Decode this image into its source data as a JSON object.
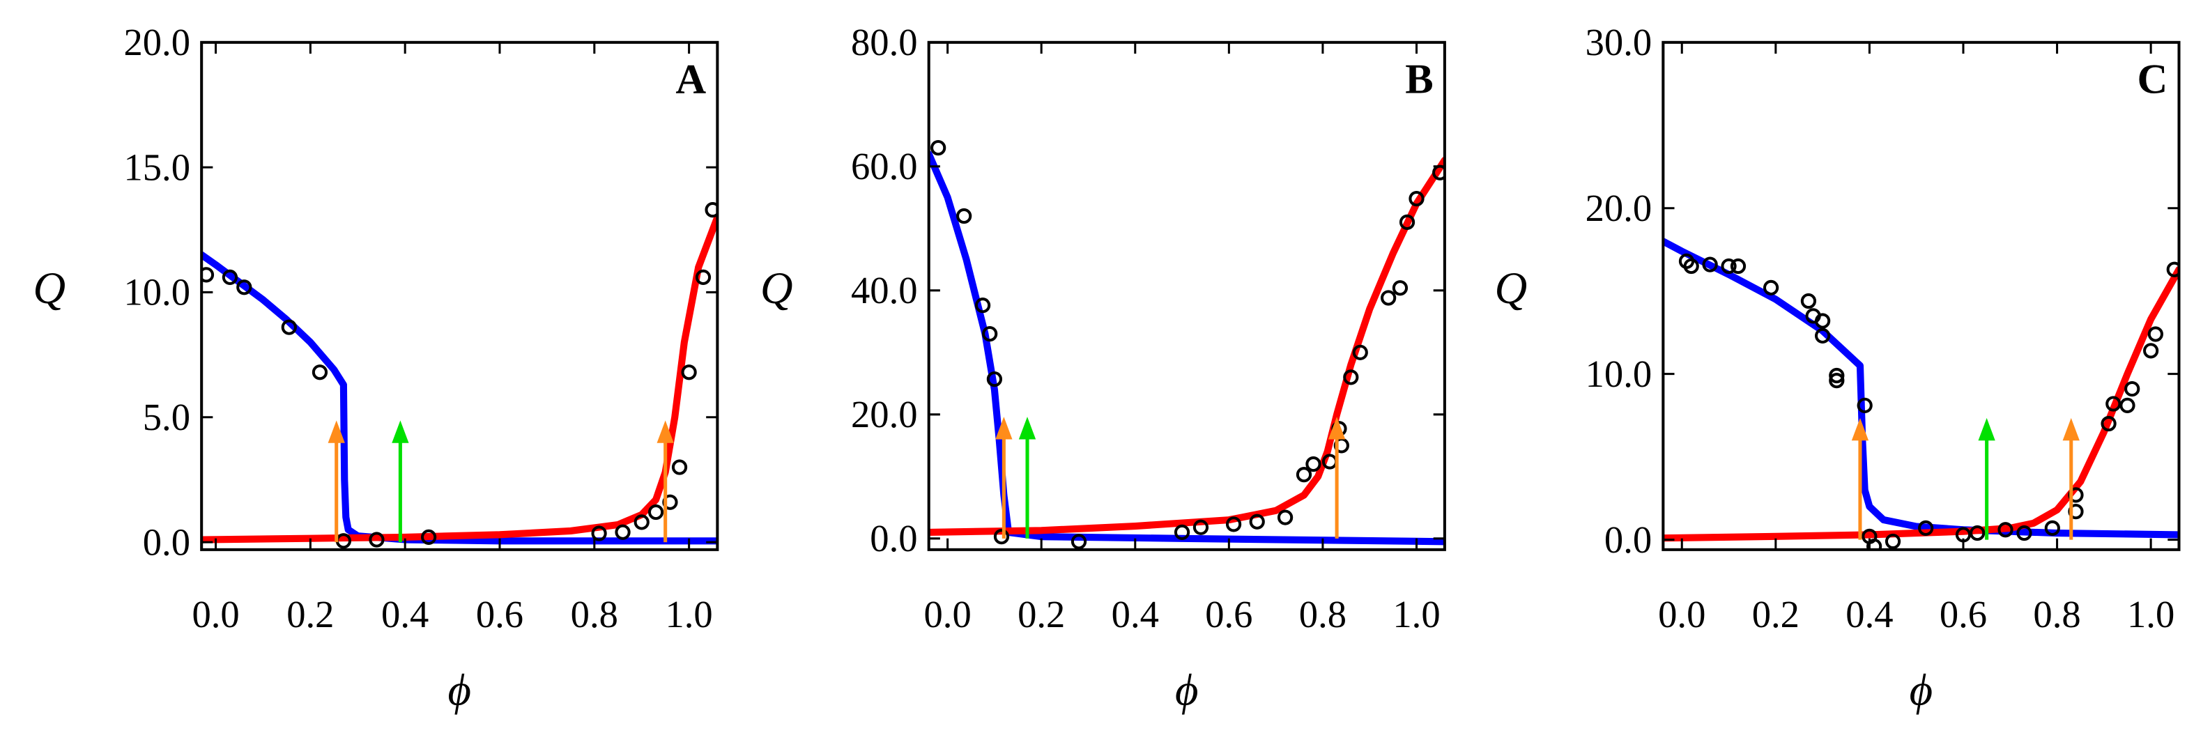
{
  "chart_data": [
    {
      "type": "line",
      "label": "A",
      "x_label": "ϕ",
      "y_label": "Q",
      "xlim": [
        -0.03,
        1.06
      ],
      "ylim": [
        -0.3,
        20
      ],
      "xticks": [
        {
          "value": 0,
          "label": "0.0"
        },
        {
          "value": 0.2,
          "label": "0.2"
        },
        {
          "value": 0.4,
          "label": "0.4"
        },
        {
          "value": 0.6,
          "label": "0.6"
        },
        {
          "value": 0.8,
          "label": "0.8"
        },
        {
          "value": 1,
          "label": "1.0"
        }
      ],
      "yticks": [
        {
          "value": 0,
          "label": "0.0"
        },
        {
          "value": 5,
          "label": "5.0"
        },
        {
          "value": 10,
          "label": "10.0"
        },
        {
          "value": 15,
          "label": "15.0"
        },
        {
          "value": 20,
          "label": "20.0"
        }
      ],
      "series": [
        {
          "kind": "line",
          "color": "#0000ff",
          "x": [
            -0.03,
            0.0,
            0.05,
            0.1,
            0.15,
            0.2,
            0.25,
            0.27,
            0.272,
            0.275,
            0.28,
            0.3,
            0.4,
            0.6,
            0.8,
            1.0,
            1.06
          ],
          "values": [
            11.5,
            11.1,
            10.4,
            9.7,
            8.9,
            8.0,
            6.9,
            6.3,
            2.5,
            1.0,
            0.5,
            0.25,
            0.1,
            0.05,
            0.05,
            0.05,
            0.05
          ]
        },
        {
          "kind": "line",
          "color": "#ff0000",
          "x": [
            -0.03,
            0.2,
            0.4,
            0.6,
            0.75,
            0.85,
            0.9,
            0.93,
            0.95,
            0.97,
            0.99,
            1.02,
            1.06
          ],
          "values": [
            0.1,
            0.15,
            0.2,
            0.3,
            0.45,
            0.7,
            1.1,
            1.7,
            2.8,
            5,
            8,
            11,
            13
          ]
        },
        {
          "kind": "scatter",
          "color": "#000000",
          "x": [
            -0.02,
            0.03,
            0.06,
            0.155,
            0.22,
            0.27,
            0.34,
            0.45,
            0.81,
            0.86,
            0.9,
            0.93,
            0.96,
            0.98,
            1.0,
            1.03,
            1.05
          ],
          "values": [
            10.7,
            10.6,
            10.2,
            8.6,
            6.8,
            0.05,
            0.1,
            0.2,
            0.35,
            0.4,
            0.8,
            1.2,
            1.6,
            3.0,
            6.8,
            10.6,
            13.3
          ]
        }
      ],
      "arrows": [
        {
          "x": 0.255,
          "color": "#ff8c1a"
        },
        {
          "x": 0.39,
          "color": "#00e000"
        },
        {
          "x": 0.95,
          "color": "#ff8c1a"
        }
      ]
    },
    {
      "type": "line",
      "label": "B",
      "x_label": "ϕ",
      "y_label": "Q",
      "xlim": [
        -0.04,
        1.06
      ],
      "ylim": [
        -1.8,
        80
      ],
      "xticks": [
        {
          "value": 0,
          "label": "0.0"
        },
        {
          "value": 0.2,
          "label": "0.2"
        },
        {
          "value": 0.4,
          "label": "0.4"
        },
        {
          "value": 0.6,
          "label": "0.6"
        },
        {
          "value": 0.8,
          "label": "0.8"
        },
        {
          "value": 1,
          "label": "1.0"
        }
      ],
      "yticks": [
        {
          "value": 0,
          "label": "0.0"
        },
        {
          "value": 20,
          "label": "20.0"
        },
        {
          "value": 40,
          "label": "40.0"
        },
        {
          "value": 60,
          "label": "60.0"
        },
        {
          "value": 80,
          "label": "80.0"
        }
      ],
      "series": [
        {
          "kind": "line",
          "color": "#0000ff",
          "x": [
            -0.04,
            0.0,
            0.04,
            0.08,
            0.1,
            0.11,
            0.12,
            0.13,
            0.2,
            0.5,
            1.06
          ],
          "values": [
            62,
            55,
            45,
            33,
            24,
            16,
            7,
            1,
            0.3,
            0,
            -0.5
          ]
        },
        {
          "kind": "line",
          "color": "#ff0000",
          "x": [
            -0.04,
            0.2,
            0.4,
            0.6,
            0.7,
            0.76,
            0.79,
            0.81,
            0.83,
            0.86,
            0.9,
            0.95,
            1.0,
            1.06
          ],
          "values": [
            1,
            1.3,
            2,
            3,
            4.5,
            7,
            10,
            14,
            20,
            28,
            37,
            46,
            54,
            61
          ]
        },
        {
          "kind": "scatter",
          "color": "#000000",
          "x": [
            -0.02,
            0.035,
            0.075,
            0.09,
            0.1,
            0.115,
            0.28,
            0.5,
            0.54,
            0.61,
            0.66,
            0.72,
            0.76,
            0.78,
            0.815,
            0.835,
            0.84,
            0.86,
            0.88,
            0.94,
            0.965,
            0.98,
            1.0,
            1.05
          ],
          "values": [
            63,
            52,
            37.6,
            33,
            25.7,
            0.3,
            -0.5,
            1,
            1.8,
            2.3,
            2.7,
            3.4,
            10.3,
            12,
            12.4,
            17.7,
            15,
            26,
            30,
            38.8,
            40.4,
            51,
            54.8,
            59
          ]
        }
      ],
      "arrows": [
        {
          "x": 0.12,
          "color": "#ff8c1a"
        },
        {
          "x": 0.17,
          "color": "#00e000"
        },
        {
          "x": 0.83,
          "color": "#ff8c1a"
        }
      ]
    },
    {
      "type": "line",
      "label": "C",
      "x_label": "ϕ",
      "y_label": "Q",
      "xlim": [
        -0.04,
        1.06
      ],
      "ylim": [
        -0.6,
        30
      ],
      "xticks": [
        {
          "value": 0,
          "label": "0.0"
        },
        {
          "value": 0.2,
          "label": "0.2"
        },
        {
          "value": 0.4,
          "label": "0.4"
        },
        {
          "value": 0.6,
          "label": "0.6"
        },
        {
          "value": 0.8,
          "label": "0.8"
        },
        {
          "value": 1,
          "label": "1.0"
        }
      ],
      "yticks": [
        {
          "value": 0,
          "label": "0.0"
        },
        {
          "value": 10,
          "label": "10.0"
        },
        {
          "value": 20,
          "label": "20.0"
        },
        {
          "value": 30,
          "label": "30.0"
        }
      ],
      "series": [
        {
          "kind": "line",
          "color": "#0000ff",
          "x": [
            -0.04,
            0.0,
            0.1,
            0.2,
            0.3,
            0.38,
            0.385,
            0.39,
            0.4,
            0.43,
            0.5,
            0.6,
            0.8,
            1.06
          ],
          "values": [
            18,
            17.4,
            16,
            14.5,
            12.6,
            10.5,
            6,
            3,
            2,
            1.2,
            0.8,
            0.6,
            0.4,
            0.3
          ]
        },
        {
          "kind": "line",
          "color": "#ff0000",
          "x": [
            -0.04,
            0.2,
            0.4,
            0.6,
            0.7,
            0.75,
            0.8,
            0.85,
            0.9,
            0.95,
            1.0,
            1.06
          ],
          "values": [
            0.1,
            0.2,
            0.3,
            0.5,
            0.7,
            1,
            1.8,
            3.5,
            6.5,
            10,
            13.3,
            16.3
          ]
        },
        {
          "kind": "scatter",
          "color": "#000000",
          "x": [
            0.01,
            0.02,
            0.06,
            0.1,
            0.12,
            0.19,
            0.27,
            0.28,
            0.3,
            0.3,
            0.33,
            0.33,
            0.39,
            0.4,
            0.41,
            0.45,
            0.52,
            0.6,
            0.63,
            0.69,
            0.73,
            0.79,
            0.84,
            0.84,
            0.91,
            0.92,
            0.95,
            0.96,
            1.0,
            1.01,
            1.05
          ],
          "values": [
            16.8,
            16.5,
            16.6,
            16.5,
            16.5,
            15.2,
            14.4,
            13.5,
            13.2,
            12.3,
            9.9,
            9.6,
            8.1,
            0.2,
            -0.4,
            -0.1,
            0.7,
            0.3,
            0.4,
            0.6,
            0.4,
            0.7,
            2.7,
            1.7,
            7,
            8.2,
            8.1,
            9.1,
            11.4,
            12.4,
            16.3
          ]
        }
      ],
      "arrows": [
        {
          "x": 0.38,
          "color": "#ff8c1a"
        },
        {
          "x": 0.65,
          "color": "#00e000"
        },
        {
          "x": 0.83,
          "color": "#ff8c1a"
        }
      ]
    }
  ]
}
